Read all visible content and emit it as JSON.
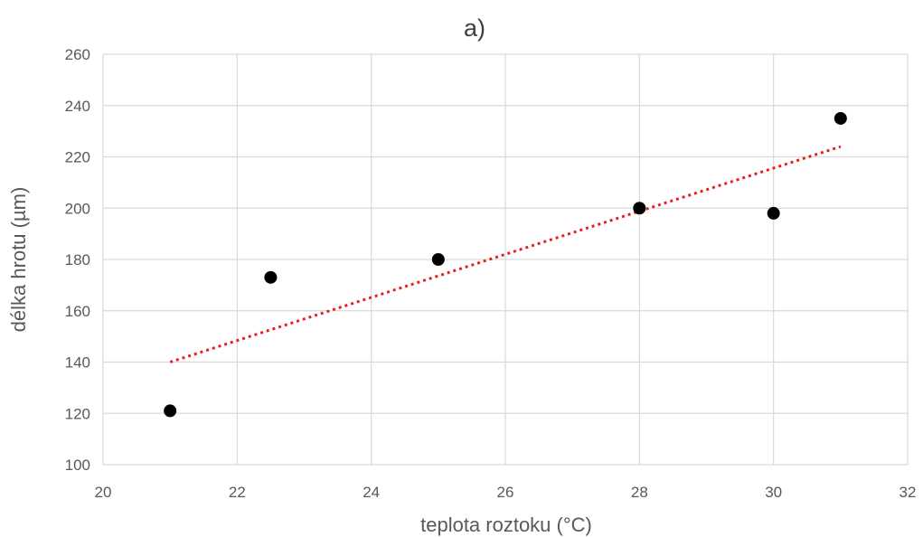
{
  "chart_data": {
    "type": "scatter",
    "title": "a)",
    "xlabel": "teplota roztoku (°C)",
    "ylabel": "délka hrotu (µm)",
    "xlim": [
      20,
      32
    ],
    "ylim": [
      100,
      260
    ],
    "xticks": [
      "20",
      "22",
      "24",
      "26",
      "28",
      "30",
      "32"
    ],
    "yticks": [
      "100",
      "120",
      "140",
      "160",
      "180",
      "200",
      "220",
      "240",
      "260"
    ],
    "grid": true,
    "series": [
      {
        "points": [
          {
            "x": 21,
            "y": 121
          },
          {
            "x": 22.5,
            "y": 173
          },
          {
            "x": 25,
            "y": 180
          },
          {
            "x": 28,
            "y": 200
          },
          {
            "x": 30,
            "y": 198
          },
          {
            "x": 31,
            "y": 235
          }
        ],
        "color": "#000000"
      }
    ],
    "trendline": {
      "type": "linear",
      "style": "dotted",
      "color": "#e8201e",
      "points": [
        {
          "x": 21,
          "y": 140
        },
        {
          "x": 31,
          "y": 224
        }
      ]
    }
  }
}
